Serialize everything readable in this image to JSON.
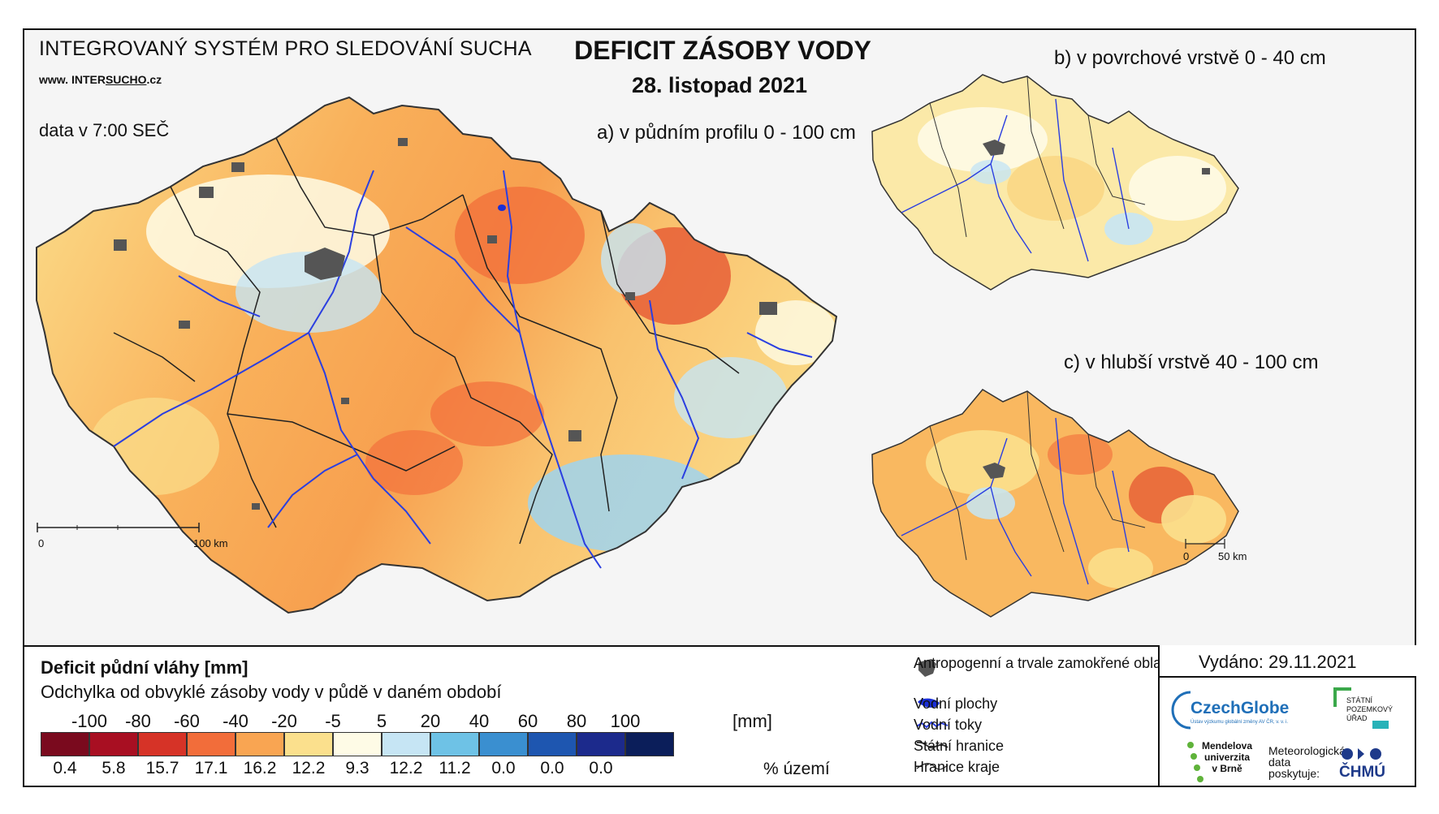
{
  "header": {
    "system_title": "INTEGROVANÝ SYSTÉM PRO SLEDOVÁNÍ SUCHA",
    "website_prefix": "www.",
    "website_main": "INTER",
    "website_highlight": "SUCHO",
    "website_suffix": ".cz",
    "data_time": "data v 7:00 SEČ"
  },
  "title": {
    "main": "DEFICIT ZÁSOBY VODY",
    "date": "28. listopad 2021"
  },
  "maps": {
    "a_label": "a) v půdním profilu 0 - 100 cm",
    "b_label": "b) v povrchové vrstvě 0 - 40 cm",
    "c_label": "c) v hlubší vrstvě 40 - 100 cm",
    "scale_main_start": "0",
    "scale_main_end": "100 km",
    "scale_small_start": "0",
    "scale_small_end": "50 km"
  },
  "legend": {
    "title": "Deficit půdní vláhy  [mm]",
    "subtitle": "Odchylka od obvyklé zásoby vody v půdě v daném období",
    "unit_mm": "[mm]",
    "unit_pct": "% území",
    "breaks": [
      "-100",
      "-80",
      "-60",
      "-40",
      "-20",
      "-5",
      "5",
      "20",
      "40",
      "60",
      "80",
      "100"
    ],
    "classes": [
      {
        "color": "#7a0a1e",
        "pct": "0.4"
      },
      {
        "color": "#a80f22",
        "pct": "5.8"
      },
      {
        "color": "#d63327",
        "pct": "15.7"
      },
      {
        "color": "#f26d3a",
        "pct": "17.1"
      },
      {
        "color": "#f9a552",
        "pct": "16.2"
      },
      {
        "color": "#fbe08d",
        "pct": "12.2"
      },
      {
        "color": "#fefbe6",
        "pct": "9.3"
      },
      {
        "color": "#c6e5f4",
        "pct": "12.2"
      },
      {
        "color": "#6ec2e6",
        "pct": "11.2"
      },
      {
        "color": "#3a8fd0",
        "pct": "0.0"
      },
      {
        "color": "#1e56b0",
        "pct": "0.0"
      },
      {
        "color": "#1c2a8c",
        "pct": "0.0"
      },
      {
        "color": "#0b1e5a",
        "pct": ""
      }
    ],
    "symbols": {
      "urban": "Antropogenní a trvale zamokřené oblasti",
      "water_bodies": "Vodní plochy",
      "rivers": "Vodní toky",
      "state_border": "Státní hranice",
      "region_border": "Hranice kraje"
    }
  },
  "footer": {
    "issued": "Vydáno: 29.11.2021",
    "czechglobe": "CzechGlobe",
    "czechglobe_sub": "Ústav výzkumu globální změny AV ČR, v. v. i.",
    "spu_line1": "STÁTNÍ",
    "spu_line2": "POZEMKOVÝ",
    "spu_line3": "ÚŘAD",
    "mendelu_line1": "Mendelova",
    "mendelu_line2": "univerzita",
    "mendelu_line3": "v Brně",
    "meteo_line1": "Meteorologická",
    "meteo_line2": "data",
    "meteo_line3": "poskytuje:",
    "chmu": "ČHMÚ"
  },
  "colors": {
    "border": "#222222",
    "river": "#2b3fe0",
    "urban": "#555555",
    "czechglobe_blue": "#1f6fb8",
    "spu_green": "#3aa84a",
    "mendelu_green": "#5fb33a"
  }
}
